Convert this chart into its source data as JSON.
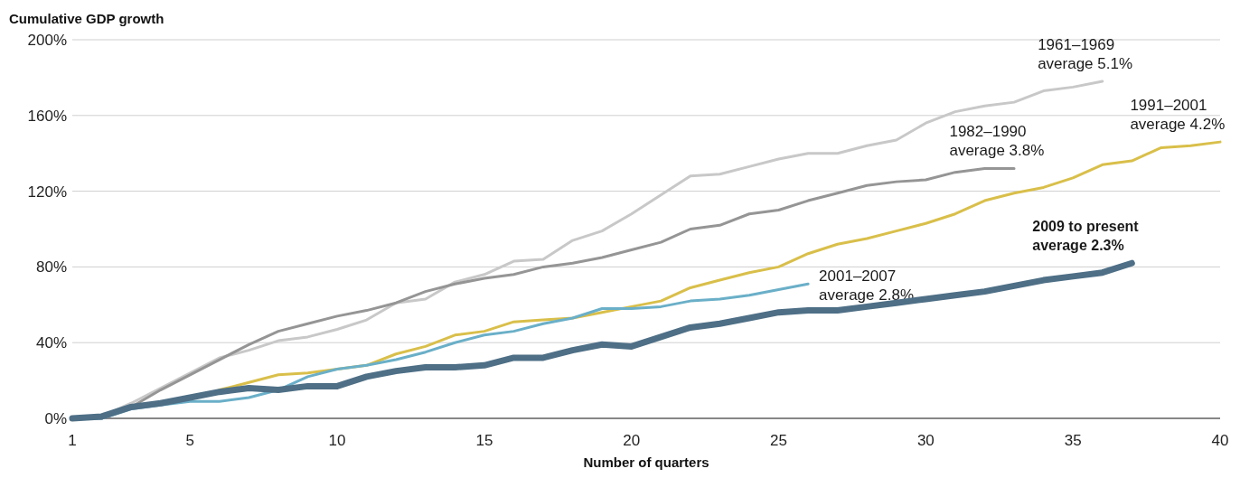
{
  "chart_data": {
    "type": "line",
    "title": "Cumulative GDP growth",
    "xlabel": "Number of quarters",
    "xlim": [
      1,
      40
    ],
    "xticks": [
      1,
      5,
      10,
      15,
      20,
      25,
      30,
      35,
      40
    ],
    "ylim": [
      0,
      200
    ],
    "yticks": [
      {
        "value": 0,
        "label": "0%"
      },
      {
        "value": 40,
        "label": "40%"
      },
      {
        "value": 80,
        "label": "80%"
      },
      {
        "value": 120,
        "label": "120%"
      },
      {
        "value": 160,
        "label": "160%"
      },
      {
        "value": 200,
        "label": "200%"
      }
    ],
    "grid": "y",
    "series": [
      {
        "name": "1961–1969\naverage 5.1%",
        "color": "#c8c8c8",
        "x": [
          1,
          2,
          3,
          4,
          5,
          6,
          7,
          8,
          9,
          10,
          11,
          12,
          13,
          14,
          15,
          16,
          17,
          18,
          19,
          20,
          21,
          22,
          23,
          24,
          25,
          26,
          27,
          28,
          29,
          30,
          31,
          32,
          33,
          34,
          35,
          36
        ],
        "values": [
          0,
          1,
          8,
          16,
          24,
          32,
          36,
          41,
          43,
          47,
          52,
          61,
          63,
          72,
          76,
          83,
          84,
          94,
          99,
          108,
          118,
          128,
          129,
          133,
          137,
          140,
          140,
          144,
          147,
          156,
          162,
          165,
          167,
          173,
          175,
          178
        ]
      },
      {
        "name": "1982–1990\naverage 3.8%",
        "color": "#959595",
        "x": [
          1,
          2,
          3,
          4,
          5,
          6,
          7,
          8,
          9,
          10,
          11,
          12,
          13,
          14,
          15,
          16,
          17,
          18,
          19,
          20,
          21,
          22,
          23,
          24,
          25,
          26,
          27,
          28,
          29,
          30,
          31,
          32,
          33
        ],
        "values": [
          0,
          0,
          6,
          15,
          23,
          31,
          39,
          46,
          50,
          54,
          57,
          61,
          67,
          71,
          74,
          76,
          80,
          82,
          85,
          89,
          93,
          100,
          102,
          108,
          110,
          115,
          119,
          123,
          125,
          126,
          130,
          132,
          132
        ]
      },
      {
        "name": "1991–2001\naverage 4.2%",
        "color": "#d9bf4a",
        "x": [
          6,
          7,
          8,
          9,
          10,
          11,
          12,
          13,
          14,
          15,
          16,
          17,
          18,
          19,
          20,
          21,
          22,
          23,
          24,
          25,
          26,
          27,
          28,
          29,
          30,
          31,
          32,
          33,
          34,
          35,
          36,
          37,
          38,
          39,
          40
        ],
        "values": [
          15,
          19,
          23,
          24,
          26,
          28,
          34,
          38,
          44,
          46,
          51,
          52,
          53,
          56,
          59,
          62,
          69,
          73,
          77,
          80,
          87,
          92,
          95,
          99,
          103,
          108,
          115,
          119,
          122,
          127,
          134,
          136,
          143,
          144,
          146
        ]
      },
      {
        "name": "2001–2007\naverage 2.8%",
        "color": "#6aafc8",
        "x": [
          1,
          2,
          3,
          4,
          5,
          6,
          7,
          8,
          9,
          10,
          11,
          12,
          13,
          14,
          15,
          16,
          17,
          18,
          19,
          20,
          21,
          22,
          23,
          24,
          25,
          26
        ],
        "values": [
          0,
          0,
          5,
          7,
          9,
          9,
          11,
          15,
          22,
          26,
          28,
          31,
          35,
          40,
          44,
          46,
          50,
          53,
          58,
          58,
          59,
          62,
          63,
          65,
          68,
          71
        ]
      },
      {
        "name": "2009 to present\naverage 2.3%",
        "color": "#4e6f86",
        "x": [
          1,
          2,
          3,
          4,
          5,
          6,
          7,
          8,
          9,
          10,
          11,
          12,
          13,
          14,
          15,
          16,
          17,
          18,
          19,
          20,
          21,
          22,
          23,
          24,
          25,
          26,
          27,
          28,
          29,
          30,
          31,
          32,
          33,
          34,
          35,
          36,
          37
        ],
        "values": [
          0,
          1,
          6,
          8,
          11,
          14,
          16,
          15,
          17,
          17,
          22,
          25,
          27,
          27,
          28,
          32,
          32,
          36,
          39,
          38,
          43,
          48,
          50,
          53,
          56,
          57,
          57,
          59,
          61,
          63,
          65,
          67,
          70,
          73,
          75,
          77,
          82
        ]
      }
    ]
  }
}
